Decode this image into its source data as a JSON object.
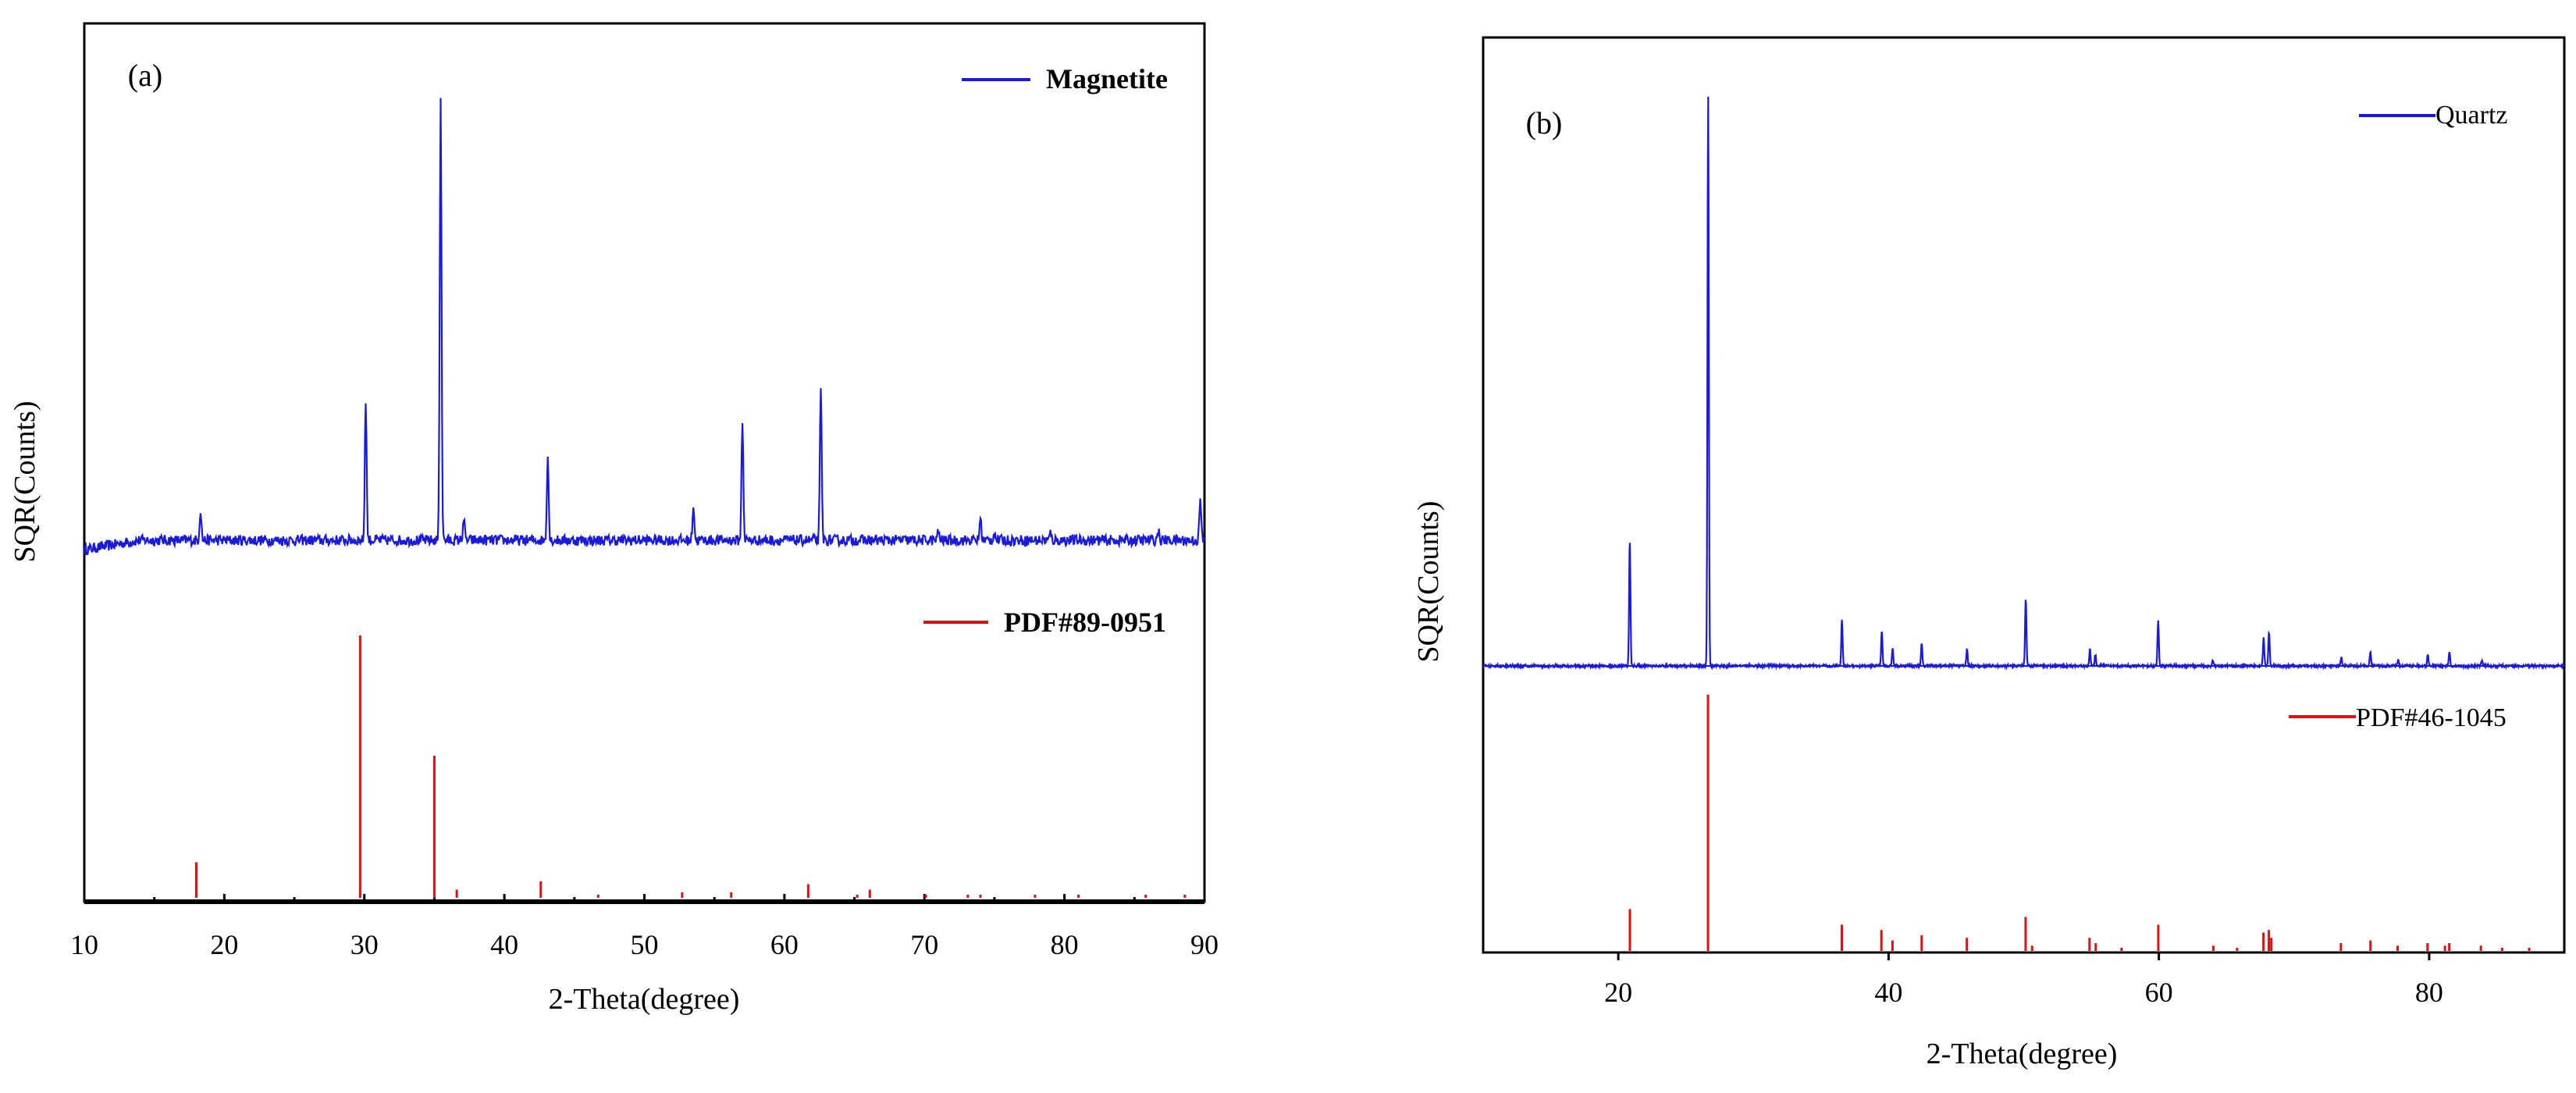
{
  "figure": {
    "panels": [
      {
        "tag": "(a)",
        "legend_sample": "Magnetite",
        "legend_reference": "PDF#89-0951"
      },
      {
        "tag": "(b)",
        "legend_sample": "Quartz",
        "legend_reference": "PDF#46-1045"
      }
    ]
  },
  "colors": {
    "sample": "#1a1adf",
    "reference": "#e01010",
    "axis": "#000000"
  },
  "chart_data": [
    {
      "type": "line",
      "panel": "(a)",
      "title": "",
      "xlabel": "2-Theta(degree)",
      "ylabel": "SQR(Counts)",
      "xlim": [
        10,
        90
      ],
      "x_ticks": [
        10,
        20,
        30,
        40,
        50,
        60,
        70,
        80,
        90
      ],
      "x_minor_ticks": [
        15,
        25,
        35,
        45,
        55,
        65,
        75,
        85
      ],
      "legend": [
        "Magnetite",
        "PDF#89-0951"
      ],
      "legend_placement": "top-right",
      "series": [
        {
          "name": "Magnetite",
          "kind": "diffraction pattern",
          "baseline": 0.18,
          "noise": 0.012,
          "peaks": [
            {
              "x": 18.3,
              "y": 0.07
            },
            {
              "x": 30.1,
              "y": 0.32
            },
            {
              "x": 35.45,
              "y": 1.0
            },
            {
              "x": 37.1,
              "y": 0.05
            },
            {
              "x": 43.1,
              "y": 0.19
            },
            {
              "x": 53.5,
              "y": 0.08
            },
            {
              "x": 57.0,
              "y": 0.27
            },
            {
              "x": 62.6,
              "y": 0.34
            },
            {
              "x": 71.0,
              "y": 0.02
            },
            {
              "x": 74.0,
              "y": 0.05
            },
            {
              "x": 75.0,
              "y": 0.02
            },
            {
              "x": 79.0,
              "y": 0.015
            },
            {
              "x": 86.7,
              "y": 0.02
            },
            {
              "x": 89.7,
              "y": 0.09
            }
          ]
        },
        {
          "name": "PDF#89-0951",
          "kind": "reference sticks",
          "x": [
            18.0,
            29.7,
            35.0,
            36.6,
            42.6,
            46.7,
            52.7,
            56.2,
            61.7,
            65.2,
            66.1,
            70.1,
            73.1,
            74.0,
            77.9,
            81.0,
            85.8,
            88.6
          ],
          "y": [
            0.13,
            0.96,
            0.52,
            0.03,
            0.06,
            0.01,
            0.02,
            0.02,
            0.05,
            0.01,
            0.03,
            0.01,
            0.01,
            0.01,
            0.01,
            0.01,
            0.01,
            0.01
          ]
        }
      ]
    },
    {
      "type": "line",
      "panel": "(b)",
      "title": "",
      "xlabel": "2-Theta(degree)",
      "ylabel": "SQR(Counts)",
      "xlim": [
        10,
        90
      ],
      "x_ticks": [
        20,
        40,
        60,
        80
      ],
      "legend": [
        "Quartz",
        "PDF#46-1045"
      ],
      "legend_placement": "top-right",
      "series": [
        {
          "name": "Quartz",
          "kind": "diffraction pattern",
          "baseline": 0.0,
          "noise": 0.002,
          "peaks": [
            {
              "x": 20.85,
              "y": 0.22
            },
            {
              "x": 26.65,
              "y": 1.0
            },
            {
              "x": 36.55,
              "y": 0.08
            },
            {
              "x": 39.5,
              "y": 0.06
            },
            {
              "x": 40.3,
              "y": 0.03
            },
            {
              "x": 42.45,
              "y": 0.04
            },
            {
              "x": 45.8,
              "y": 0.03
            },
            {
              "x": 50.15,
              "y": 0.12
            },
            {
              "x": 54.9,
              "y": 0.03
            },
            {
              "x": 55.3,
              "y": 0.02
            },
            {
              "x": 59.95,
              "y": 0.08
            },
            {
              "x": 64.0,
              "y": 0.01
            },
            {
              "x": 67.75,
              "y": 0.05
            },
            {
              "x": 68.15,
              "y": 0.06
            },
            {
              "x": 73.5,
              "y": 0.015
            },
            {
              "x": 75.65,
              "y": 0.025
            },
            {
              "x": 77.7,
              "y": 0.01
            },
            {
              "x": 79.9,
              "y": 0.02
            },
            {
              "x": 81.5,
              "y": 0.025
            },
            {
              "x": 83.9,
              "y": 0.01
            }
          ]
        },
        {
          "name": "PDF#46-1045",
          "kind": "reference sticks",
          "x": [
            20.86,
            26.64,
            36.54,
            39.47,
            40.29,
            42.45,
            45.79,
            50.14,
            50.62,
            54.87,
            55.33,
            57.24,
            59.96,
            64.03,
            65.79,
            67.74,
            68.14,
            68.32,
            73.47,
            75.66,
            77.67,
            79.88,
            81.17,
            81.49,
            83.83,
            85.4,
            87.4
          ],
          "y": [
            0.16,
            0.98,
            0.1,
            0.08,
            0.04,
            0.06,
            0.05,
            0.13,
            0.02,
            0.05,
            0.03,
            0.01,
            0.1,
            0.02,
            0.01,
            0.07,
            0.08,
            0.05,
            0.03,
            0.04,
            0.02,
            0.03,
            0.02,
            0.03,
            0.02,
            0.01,
            0.01
          ]
        }
      ]
    }
  ]
}
